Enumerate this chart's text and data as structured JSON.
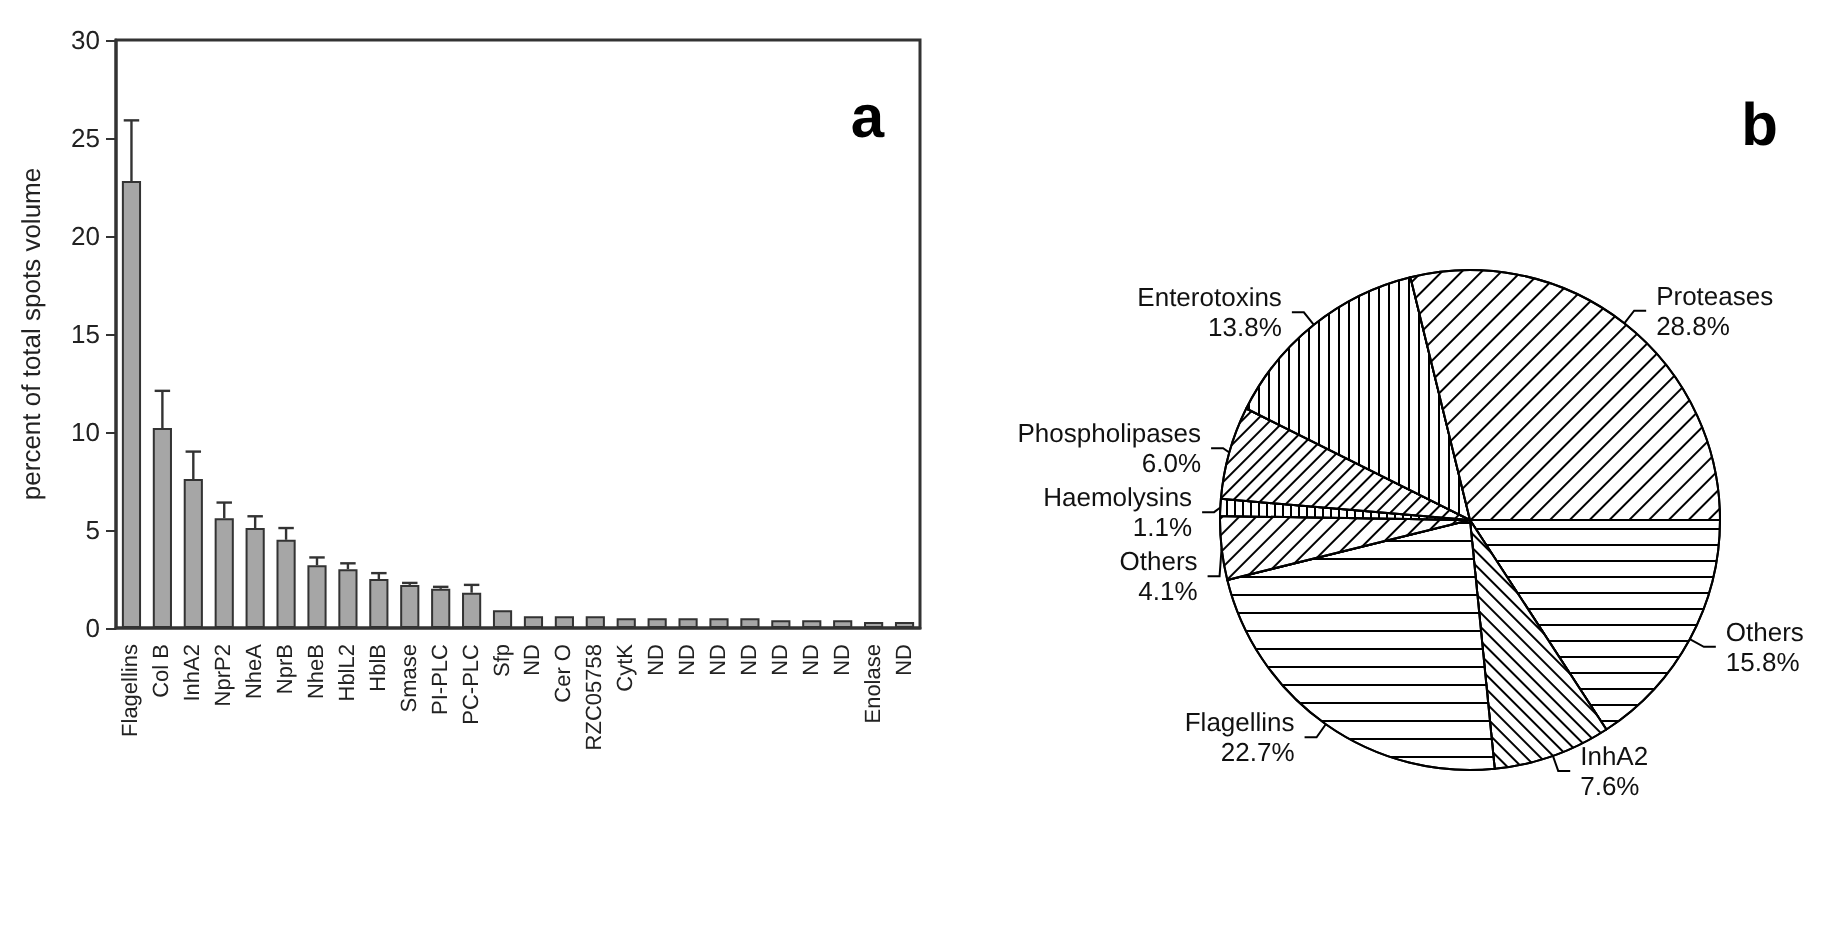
{
  "chart_data": [
    {
      "type": "bar",
      "ylabel": "percent of total spots volume",
      "annotations": [
        "a"
      ],
      "categories": [
        "Flagellins",
        "Col B",
        "InhA2",
        "NprP2",
        "NheA",
        "NprB",
        "NheB",
        "HblL2",
        "HblB",
        "Smase",
        "PI-PLC",
        "PC-PLC",
        "Sfp",
        "ND",
        "Cer O",
        "RZC05758",
        "CytK",
        "ND",
        "ND",
        "ND",
        "ND",
        "ND",
        "ND",
        "ND",
        "Enolase",
        "ND"
      ],
      "values": [
        22.8,
        10.2,
        7.6,
        5.6,
        5.1,
        4.5,
        3.2,
        3.0,
        2.5,
        2.2,
        2.0,
        1.8,
        0.9,
        0.6,
        0.6,
        0.6,
        0.5,
        0.5,
        0.5,
        0.5,
        0.5,
        0.4,
        0.4,
        0.4,
        0.3,
        0.3
      ],
      "errors": [
        3.1,
        1.9,
        1.4,
        0.8,
        0.6,
        0.6,
        0.4,
        0.3,
        0.3,
        0.1,
        0.1,
        0.4,
        null,
        null,
        null,
        null,
        null,
        null,
        null,
        null,
        null,
        null,
        null,
        null,
        null,
        null
      ],
      "color": "#a6a6a6",
      "ylim": [
        0,
        30
      ],
      "yticks": [
        0,
        5,
        10,
        15,
        20,
        25,
        30
      ],
      "grid": false,
      "legend": false
    },
    {
      "type": "pie",
      "annotations": [
        "b"
      ],
      "categories": [
        "Others",
        "InhA2",
        "Flagellins",
        "Others",
        "Haemolysins",
        "Phospholipases",
        "Enterotoxins",
        "Proteases"
      ],
      "values": [
        15.8,
        7.6,
        22.7,
        4.1,
        1.1,
        6.0,
        13.8,
        28.8
      ],
      "value_labels": [
        "15.8%",
        "7.6%",
        "22.7%",
        "4.1%",
        "1.1%",
        "6.0%",
        "13.8%",
        "28.8%"
      ],
      "colors": [
        "#ffffff",
        "#ffffff",
        "#ffffff",
        "#ffffff",
        "#ffffff",
        "#ffffff",
        "#ffffff",
        "#ffffff"
      ],
      "legend": false
    }
  ]
}
